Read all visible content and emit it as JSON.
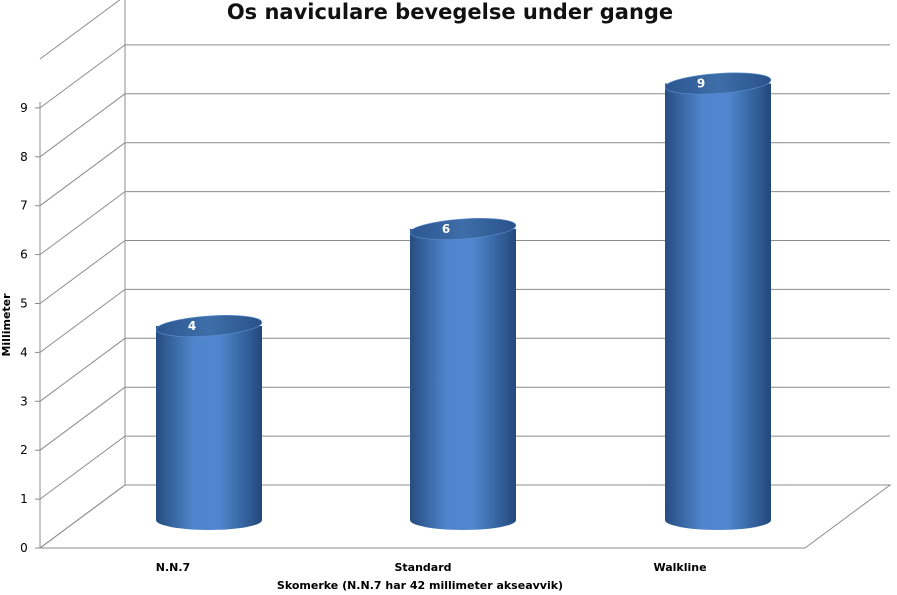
{
  "chart_data": {
    "type": "bar",
    "title": "Os naviculare bevegelse under gange",
    "xlabel": "Skomerke (N.N.7 har 42 millimeter akseavvik)",
    "ylabel": "Millimeter",
    "categories": [
      "N.N.7",
      "Standard",
      "Walkline"
    ],
    "values": [
      4,
      6,
      9
    ],
    "data_labels": [
      "4",
      "6",
      "9"
    ],
    "yticks": [
      0,
      1,
      2,
      3,
      4,
      5,
      6,
      7,
      8,
      9
    ],
    "ylim": [
      0,
      10
    ],
    "grid": true,
    "legend": "none",
    "style": "3d-cylinder",
    "bar_color": "#4a7fc4"
  }
}
